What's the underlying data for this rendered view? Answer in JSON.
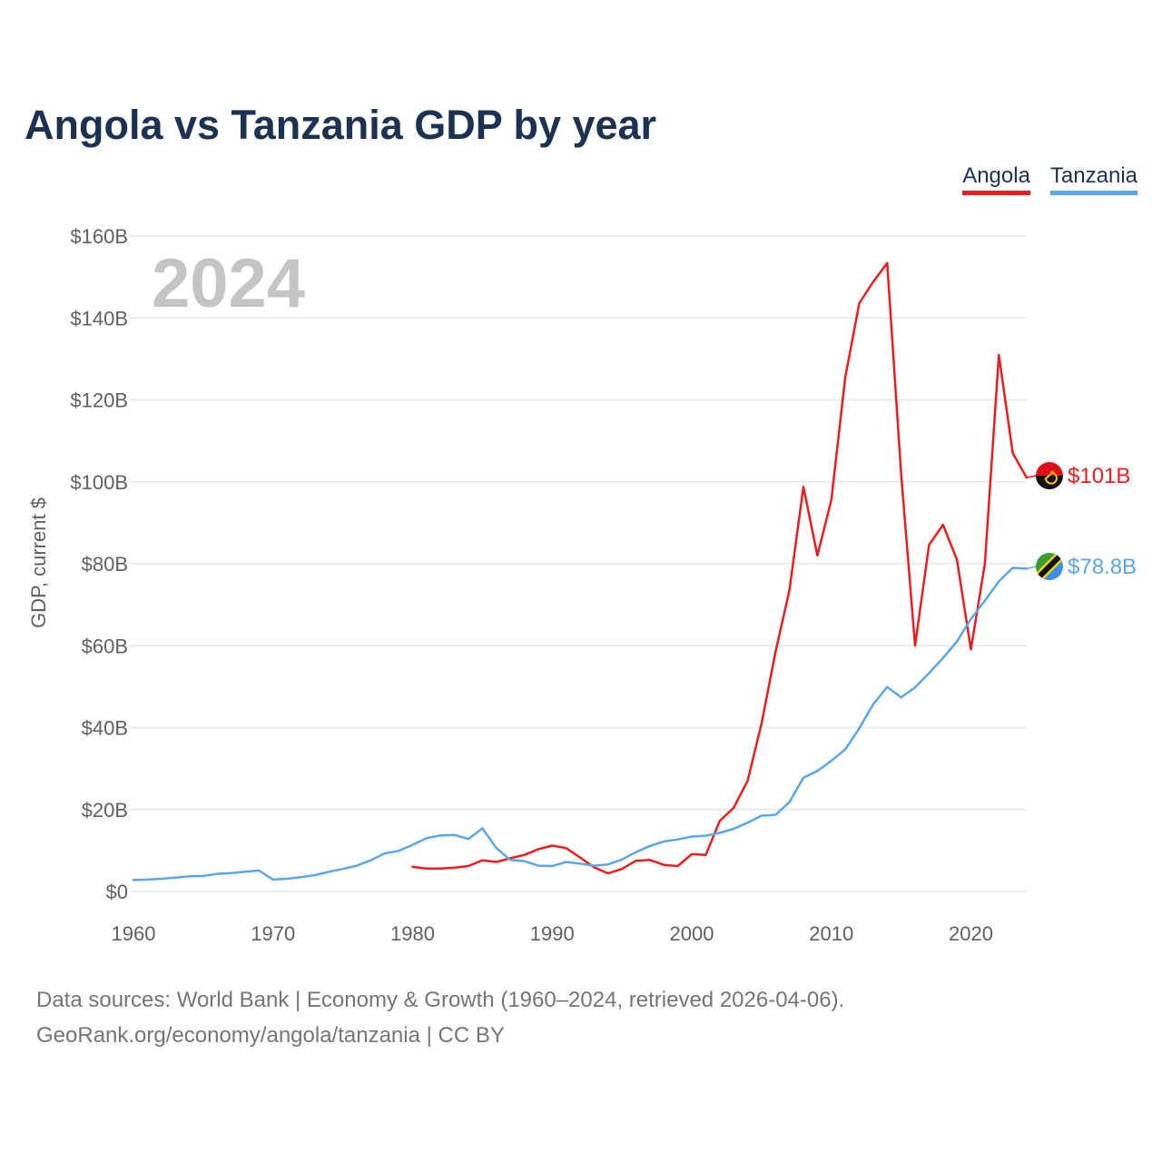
{
  "page": {
    "title": "Angola vs Tanzania GDP by year",
    "footer_line1": "Data sources: World Bank | Economy & Growth (1960–2024, retrieved 2026-04-06).",
    "footer_line2": "GeoRank.org/economy/angola/tanzania | CC BY"
  },
  "chart_data": {
    "type": "line",
    "title": "Angola vs Tanzania GDP by year",
    "xlabel": "",
    "ylabel": "GDP, current $",
    "xlim": [
      1960,
      2024
    ],
    "ylim": [
      0,
      160
    ],
    "x_ticks": [
      1960,
      1970,
      1980,
      1990,
      2000,
      2010,
      2020
    ],
    "y_ticks": [
      0,
      20,
      40,
      60,
      80,
      100,
      120,
      140,
      160
    ],
    "y_tick_labels": [
      "$0",
      "$20B",
      "$40B",
      "$60B",
      "$80B",
      "$100B",
      "$120B",
      "$140B",
      "$160B"
    ],
    "grid": true,
    "legend_position": "top-right",
    "year_label": "2024",
    "series": [
      {
        "name": "Angola",
        "color": "#ee1c1c",
        "end_label": "$101B",
        "x": [
          1980,
          1981,
          1982,
          1983,
          1984,
          1985,
          1986,
          1987,
          1988,
          1989,
          1990,
          1991,
          1992,
          1993,
          1994,
          1995,
          1996,
          1997,
          1998,
          1999,
          2000,
          2001,
          2002,
          2003,
          2004,
          2005,
          2006,
          2007,
          2008,
          2009,
          2010,
          2011,
          2012,
          2013,
          2014,
          2015,
          2016,
          2017,
          2018,
          2019,
          2020,
          2021,
          2022,
          2023,
          2024
        ],
        "values": [
          6.0,
          5.6,
          5.6,
          5.8,
          6.2,
          7.6,
          7.2,
          8.1,
          8.9,
          10.3,
          11.2,
          10.6,
          8.3,
          5.9,
          4.4,
          5.5,
          7.5,
          7.7,
          6.5,
          6.2,
          9.1,
          8.9,
          17.2,
          20.4,
          27.0,
          41.0,
          58.5,
          73.5,
          98.8,
          82.0,
          95.6,
          125.5,
          143.6,
          148.8,
          153.4,
          102.1,
          60.0,
          84.6,
          89.5,
          81.0,
          59.1,
          80.0,
          131.0,
          107.0,
          101.0
        ]
      },
      {
        "name": "Tanzania",
        "color": "#5aa6e8",
        "end_label": "$78.8B",
        "x": [
          1960,
          1961,
          1962,
          1963,
          1964,
          1965,
          1966,
          1967,
          1968,
          1969,
          1970,
          1971,
          1972,
          1973,
          1974,
          1975,
          1976,
          1977,
          1978,
          1979,
          1980,
          1981,
          1982,
          1983,
          1984,
          1985,
          1986,
          1987,
          1988,
          1989,
          1990,
          1991,
          1992,
          1993,
          1994,
          1995,
          1996,
          1997,
          1998,
          1999,
          2000,
          2001,
          2002,
          2003,
          2004,
          2005,
          2006,
          2007,
          2008,
          2009,
          2010,
          2011,
          2012,
          2013,
          2014,
          2015,
          2016,
          2017,
          2018,
          2019,
          2020,
          2021,
          2022,
          2023,
          2024
        ],
        "values": [
          2.8,
          2.9,
          3.1,
          3.4,
          3.7,
          3.8,
          4.3,
          4.5,
          4.8,
          5.1,
          2.9,
          3.1,
          3.5,
          4.0,
          4.8,
          5.5,
          6.3,
          7.6,
          9.3,
          9.9,
          11.4,
          13.0,
          13.7,
          13.8,
          12.8,
          15.4,
          10.6,
          7.7,
          7.4,
          6.3,
          6.2,
          7.2,
          6.8,
          6.3,
          6.6,
          7.8,
          9.6,
          11.1,
          12.2,
          12.7,
          13.4,
          13.6,
          14.3,
          15.3,
          16.8,
          18.5,
          18.7,
          21.8,
          27.8,
          29.4,
          31.9,
          34.7,
          39.8,
          45.7,
          49.9,
          47.4,
          49.8,
          53.3,
          57.0,
          61.0,
          66.5,
          71.0,
          75.7,
          79.0,
          78.8
        ]
      }
    ]
  }
}
